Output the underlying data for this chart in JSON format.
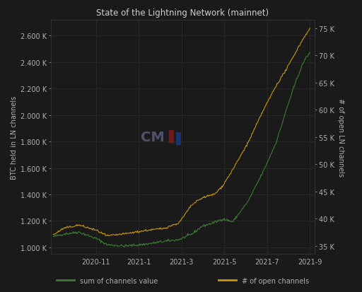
{
  "title": "State of the Lightning Network (mainnet)",
  "bg_color": "#1a1a1a",
  "grid_color": "#2e2e2e",
  "text_color": "#b0b0b0",
  "left_ylabel": "BTC held in LN channels",
  "right_ylabel": "# of open LN channels",
  "xtick_labels": [
    "2020-11",
    "2021-1",
    "2021-3",
    "2021-5",
    "2021-7",
    "2021-9"
  ],
  "left_ticks_val": [
    1000,
    1200,
    1400,
    1600,
    1800,
    2000,
    2200,
    2400,
    2600
  ],
  "right_ticks_val": [
    35000,
    40000,
    45000,
    50000,
    55000,
    60000,
    65000,
    70000,
    75000
  ],
  "ylim_left": [
    950,
    2720
  ],
  "ylim_right": [
    33500,
    76500
  ],
  "line_btc_color": "#3d7a35",
  "line_ch_color": "#c8960c",
  "legend1": "sum of channels value",
  "legend2": "# of open channels",
  "btc_waypoints_t": [
    0,
    0.04,
    0.1,
    0.17,
    0.21,
    0.28,
    0.36,
    0.43,
    0.49,
    0.54,
    0.58,
    0.63,
    0.66,
    0.7,
    0.76,
    0.82,
    0.87,
    0.91,
    0.95,
    0.98,
    1.0
  ],
  "btc_waypoints_v": [
    1080,
    1100,
    1115,
    1065,
    1020,
    1010,
    1025,
    1045,
    1060,
    1100,
    1160,
    1190,
    1215,
    1195,
    1350,
    1580,
    1800,
    2050,
    2280,
    2420,
    2470
  ],
  "ch_waypoints_t": [
    0,
    0.04,
    0.1,
    0.17,
    0.21,
    0.28,
    0.36,
    0.43,
    0.49,
    0.54,
    0.58,
    0.63,
    0.66,
    0.7,
    0.76,
    0.82,
    0.87,
    0.91,
    0.95,
    0.98,
    1.0
  ],
  "ch_waypoints_v": [
    37000,
    38200,
    38800,
    37800,
    36800,
    37200,
    37800,
    38200,
    39200,
    42500,
    43800,
    44500,
    46000,
    49000,
    54000,
    60000,
    64500,
    67500,
    71000,
    73500,
    74800
  ],
  "n_points": 400,
  "noise_seed": 42
}
